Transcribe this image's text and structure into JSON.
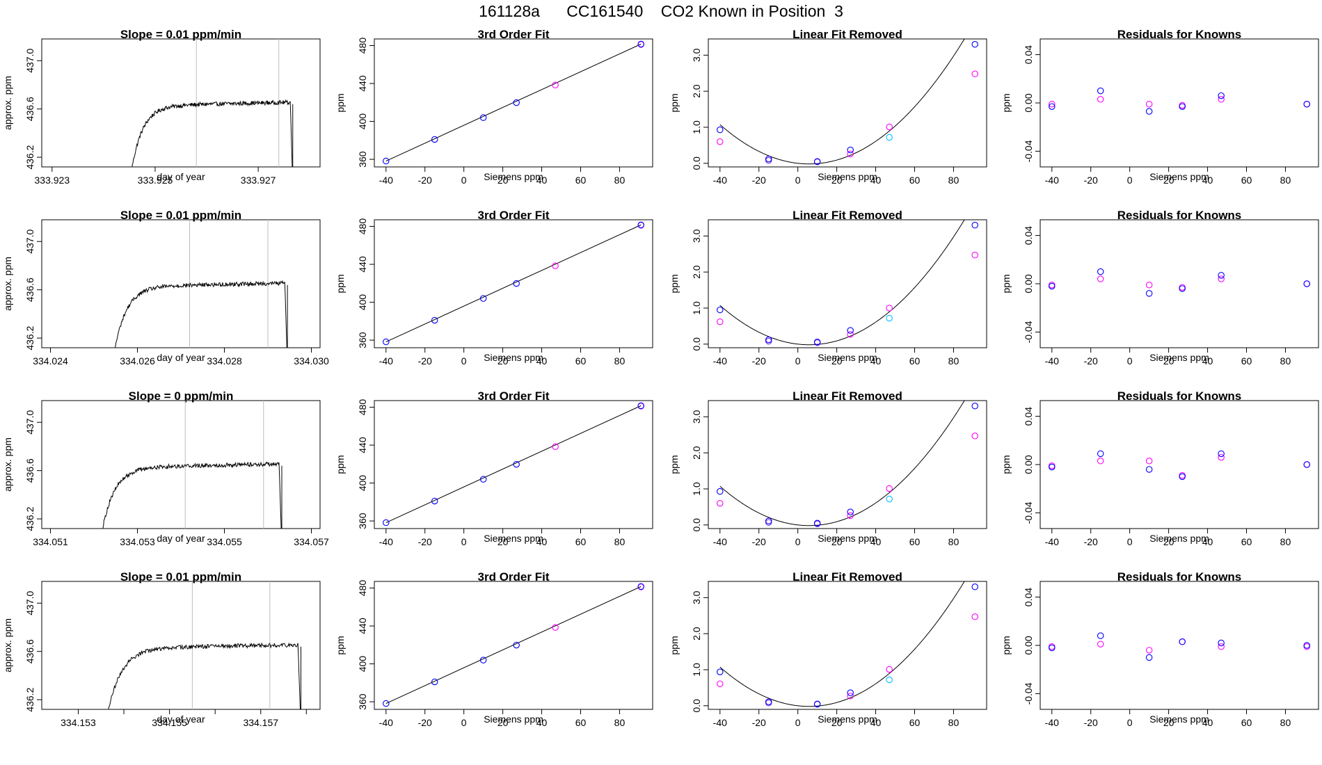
{
  "figure": {
    "title": "161128a      CC161540    CO2 Known in Position  3"
  },
  "colors": {
    "trace": "#000000",
    "gray_line": "#bebebe",
    "blue": "#0000ff",
    "magenta": "#ff00ff",
    "cyan": "#00bfff",
    "purple": "#7a2be0"
  },
  "chart_data": [
    {
      "type": "line",
      "row": 0,
      "panel": "time",
      "title": "Slope =  0.01  ppm/min",
      "xlabel": "day of year",
      "ylabel": "approx. ppm",
      "xlim": [
        333.9228,
        333.9282
      ],
      "ylim": [
        436.12,
        437.18
      ],
      "xticks": [
        333.923,
        333.925,
        333.927
      ],
      "xtick_labels": [
        "333.923",
        "333.925",
        "333.927"
      ],
      "yticks": [
        436.2,
        436.6,
        437.0
      ],
      "ytick_labels": [
        "436.2",
        "436.6",
        "437.0"
      ],
      "vlines": [
        333.9258,
        333.9274
      ],
      "trace_start": 333.92454,
      "trace_end": 333.92767
    },
    {
      "type": "scatter",
      "row": 0,
      "panel": "fit",
      "title": "3rd Order Fit",
      "xlabel": "Siemens ppm",
      "ylabel": "ppm",
      "xlim": [
        -46,
        97
      ],
      "ylim": [
        352,
        487
      ],
      "xticks": [
        -40,
        -20,
        0,
        20,
        40,
        60,
        80
      ],
      "xtick_labels": [
        "-40",
        "-20",
        "0",
        "20",
        "40",
        "60",
        "80"
      ],
      "yticks": [
        360,
        400,
        440,
        480
      ],
      "ytick_labels": [
        "360",
        "400",
        "440",
        "480"
      ],
      "line": {
        "x": [
          -40,
          91
        ],
        "y": [
          358.2,
          481.6
        ]
      },
      "points_blue": {
        "x": [
          -40,
          -15,
          10,
          27,
          91
        ],
        "y": [
          358.2,
          381.0,
          404.0,
          419.8,
          481.6
        ]
      },
      "points_magenta": {
        "x": [
          47,
          91
        ],
        "y": [
          438.4,
          481.2
        ]
      }
    },
    {
      "type": "scatter",
      "row": 0,
      "panel": "linear_removed",
      "title": "Linear Fit Removed",
      "xlabel": "Siemens ppm",
      "ylabel": "ppm",
      "xlim": [
        -46,
        97
      ],
      "ylim": [
        -0.1,
        3.45
      ],
      "xticks": [
        -40,
        -20,
        0,
        20,
        40,
        60,
        80
      ],
      "xtick_labels": [
        "-40",
        "-20",
        "0",
        "20",
        "40",
        "60",
        "80"
      ],
      "yticks": [
        0.0,
        1.0,
        2.0,
        3.0
      ],
      "ytick_labels": [
        "0.0",
        "1.0",
        "2.0",
        "3.0"
      ],
      "curve": {
        "a": -0.0061,
        "b": 0.000526,
        "c": 1.9e-07
      },
      "points_blue": {
        "x": [
          -40,
          -15,
          10,
          27,
          91
        ],
        "y": [
          0.93,
          0.12,
          0.05,
          0.37,
          3.3
        ]
      },
      "points_purple": {
        "x": [
          -15,
          10
        ],
        "y": [
          0.08,
          0.04
        ]
      },
      "points_magenta": {
        "x": [
          -40,
          27,
          47,
          91
        ],
        "y": [
          0.6,
          0.26,
          1.01,
          2.48
        ]
      },
      "points_cyan": {
        "x": [
          47
        ],
        "y": [
          0.72
        ]
      }
    },
    {
      "type": "scatter",
      "row": 0,
      "panel": "residuals",
      "title": "Residuals for Knowns",
      "xlabel": "Siemens ppm",
      "ylabel": "ppm",
      "xlim": [
        -46,
        97
      ],
      "ylim": [
        -0.053,
        0.053
      ],
      "xticks": [
        -40,
        -20,
        0,
        20,
        40,
        60,
        80
      ],
      "xtick_labels": [
        "-40",
        "-20",
        "0",
        "20",
        "40",
        "60",
        "80"
      ],
      "yticks": [
        -0.04,
        0.0,
        0.04
      ],
      "ytick_labels": [
        "-0.04",
        "0.00",
        "0.04"
      ],
      "points_blue": {
        "x": [
          -40,
          -15,
          10,
          27,
          47,
          91
        ],
        "y": [
          -0.003,
          0.01,
          -0.007,
          -0.003,
          0.006,
          -0.001
        ]
      },
      "points_magenta": {
        "x": [
          -40,
          -15,
          10,
          27,
          47,
          91
        ],
        "y": [
          -0.001,
          0.003,
          -0.001,
          -0.002,
          0.003,
          -0.001
        ]
      }
    },
    {
      "type": "line",
      "row": 1,
      "panel": "time",
      "title": "Slope =  0.01  ppm/min",
      "xlabel": "day of year",
      "ylabel": "approx. ppm",
      "xlim": [
        334.0238,
        334.0302
      ],
      "ylim": [
        436.12,
        437.18
      ],
      "xticks": [
        334.024,
        334.026,
        334.028,
        334.03
      ],
      "xtick_labels": [
        "334.024",
        "334.026",
        "334.028",
        "334.030"
      ],
      "yticks": [
        436.2,
        436.6,
        437.0
      ],
      "ytick_labels": [
        "436.2",
        "436.6",
        "437.0"
      ],
      "vlines": [
        334.0272,
        334.029
      ],
      "trace_start": 334.02547,
      "trace_end": 334.02945
    },
    {
      "type": "scatter",
      "row": 1,
      "panel": "fit",
      "title": "3rd Order Fit",
      "xlabel": "Siemens ppm",
      "ylabel": "ppm",
      "xlim": [
        -46,
        97
      ],
      "ylim": [
        352,
        487
      ],
      "xticks": [
        -40,
        -20,
        0,
        20,
        40,
        60,
        80
      ],
      "xtick_labels": [
        "-40",
        "-20",
        "0",
        "20",
        "40",
        "60",
        "80"
      ],
      "yticks": [
        360,
        400,
        440,
        480
      ],
      "ytick_labels": [
        "360",
        "400",
        "440",
        "480"
      ],
      "line": {
        "x": [
          -40,
          91
        ],
        "y": [
          358.2,
          481.6
        ]
      },
      "points_blue": {
        "x": [
          -40,
          -15,
          10,
          27,
          91
        ],
        "y": [
          358.2,
          381.0,
          404.0,
          419.8,
          481.6
        ]
      },
      "points_magenta": {
        "x": [
          47,
          91
        ],
        "y": [
          438.4,
          481.2
        ]
      }
    },
    {
      "type": "scatter",
      "row": 1,
      "panel": "linear_removed",
      "title": "Linear Fit Removed",
      "xlabel": "Siemens ppm",
      "ylabel": "ppm",
      "xlim": [
        -46,
        97
      ],
      "ylim": [
        -0.1,
        3.45
      ],
      "xticks": [
        -40,
        -20,
        0,
        20,
        40,
        60,
        80
      ],
      "xtick_labels": [
        "-40",
        "-20",
        "0",
        "20",
        "40",
        "60",
        "80"
      ],
      "yticks": [
        0.0,
        1.0,
        2.0,
        3.0
      ],
      "ytick_labels": [
        "0.0",
        "1.0",
        "2.0",
        "3.0"
      ],
      "curve": {
        "a": -0.0061,
        "b": 0.000526,
        "c": 1.9e-07
      },
      "points_blue": {
        "x": [
          -40,
          -15,
          10,
          27,
          91
        ],
        "y": [
          0.95,
          0.12,
          0.06,
          0.38,
          3.3
        ]
      },
      "points_purple": {
        "x": [
          -15,
          10
        ],
        "y": [
          0.08,
          0.04
        ]
      },
      "points_magenta": {
        "x": [
          -40,
          27,
          47,
          91
        ],
        "y": [
          0.62,
          0.27,
          1.0,
          2.47
        ]
      },
      "points_cyan": {
        "x": [
          47
        ],
        "y": [
          0.72
        ]
      }
    },
    {
      "type": "scatter",
      "row": 1,
      "panel": "residuals",
      "title": "Residuals for Knowns",
      "xlabel": "Siemens ppm",
      "ylabel": "ppm",
      "xlim": [
        -46,
        97
      ],
      "ylim": [
        -0.053,
        0.053
      ],
      "xticks": [
        -40,
        -20,
        0,
        20,
        40,
        60,
        80
      ],
      "xtick_labels": [
        "-40",
        "-20",
        "0",
        "20",
        "40",
        "60",
        "80"
      ],
      "yticks": [
        -0.04,
        0.0,
        0.04
      ],
      "ytick_labels": [
        "-0.04",
        "0.00",
        "0.04"
      ],
      "points_blue": {
        "x": [
          -40,
          -15,
          10,
          27,
          47,
          91
        ],
        "y": [
          -0.002,
          0.01,
          -0.008,
          -0.004,
          0.007,
          0.0
        ]
      },
      "points_magenta": {
        "x": [
          -40,
          -15,
          10,
          27,
          47,
          91
        ],
        "y": [
          -0.001,
          0.004,
          -0.001,
          -0.003,
          0.004,
          0.0
        ]
      }
    },
    {
      "type": "line",
      "row": 2,
      "panel": "time",
      "title": "Slope =  0  ppm/min",
      "xlabel": "day of year",
      "ylabel": "approx. ppm",
      "xlim": [
        334.0508,
        334.0572
      ],
      "ylim": [
        436.12,
        437.18
      ],
      "xticks": [
        334.051,
        334.053,
        334.055,
        334.057
      ],
      "xtick_labels": [
        "334.051",
        "334.053",
        "334.055",
        "334.057"
      ],
      "yticks": [
        436.2,
        436.6,
        437.0
      ],
      "ytick_labels": [
        "436.2",
        "436.6",
        "437.0"
      ],
      "vlines": [
        334.0541,
        334.0559
      ],
      "trace_start": 334.05218,
      "trace_end": 334.05632
    },
    {
      "type": "scatter",
      "row": 2,
      "panel": "fit",
      "title": "3rd Order Fit",
      "xlabel": "Siemens ppm",
      "ylabel": "ppm",
      "xlim": [
        -46,
        97
      ],
      "ylim": [
        352,
        487
      ],
      "xticks": [
        -40,
        -20,
        0,
        20,
        40,
        60,
        80
      ],
      "xtick_labels": [
        "-40",
        "-20",
        "0",
        "20",
        "40",
        "60",
        "80"
      ],
      "yticks": [
        360,
        400,
        440,
        480
      ],
      "ytick_labels": [
        "360",
        "400",
        "440",
        "480"
      ],
      "line": {
        "x": [
          -40,
          91
        ],
        "y": [
          358.2,
          481.6
        ]
      },
      "points_blue": {
        "x": [
          -40,
          -15,
          10,
          27,
          91
        ],
        "y": [
          358.2,
          381.0,
          404.0,
          419.8,
          481.6
        ]
      },
      "points_magenta": {
        "x": [
          47,
          91
        ],
        "y": [
          438.4,
          481.2
        ]
      }
    },
    {
      "type": "scatter",
      "row": 2,
      "panel": "linear_removed",
      "title": "Linear Fit Removed",
      "xlabel": "Siemens ppm",
      "ylabel": "ppm",
      "xlim": [
        -46,
        97
      ],
      "ylim": [
        -0.1,
        3.45
      ],
      "xticks": [
        -40,
        -20,
        0,
        20,
        40,
        60,
        80
      ],
      "xtick_labels": [
        "-40",
        "-20",
        "0",
        "20",
        "40",
        "60",
        "80"
      ],
      "yticks": [
        0.0,
        1.0,
        2.0,
        3.0
      ],
      "ytick_labels": [
        "0.0",
        "1.0",
        "2.0",
        "3.0"
      ],
      "curve": {
        "a": -0.0061,
        "b": 0.000526,
        "c": 1.9e-07
      },
      "points_blue": {
        "x": [
          -40,
          -15,
          10,
          27,
          91
        ],
        "y": [
          0.93,
          0.11,
          0.05,
          0.36,
          3.3
        ]
      },
      "points_purple": {
        "x": [
          -15,
          10
        ],
        "y": [
          0.07,
          0.03
        ]
      },
      "points_magenta": {
        "x": [
          -40,
          27,
          47,
          91
        ],
        "y": [
          0.6,
          0.26,
          1.01,
          2.47
        ]
      },
      "points_cyan": {
        "x": [
          47
        ],
        "y": [
          0.72
        ]
      }
    },
    {
      "type": "scatter",
      "row": 2,
      "panel": "residuals",
      "title": "Residuals for Knowns",
      "xlabel": "Siemens ppm",
      "ylabel": "ppm",
      "xlim": [
        -46,
        97
      ],
      "ylim": [
        -0.053,
        0.053
      ],
      "xticks": [
        -40,
        -20,
        0,
        20,
        40,
        60,
        80
      ],
      "xtick_labels": [
        "-40",
        "-20",
        "0",
        "20",
        "40",
        "60",
        "80"
      ],
      "yticks": [
        -0.04,
        0.0,
        0.04
      ],
      "ytick_labels": [
        "-0.04",
        "0.00",
        "0.04"
      ],
      "points_blue": {
        "x": [
          -40,
          -15,
          10,
          27,
          47,
          91
        ],
        "y": [
          -0.002,
          0.009,
          -0.004,
          -0.01,
          0.009,
          0.0
        ]
      },
      "points_magenta": {
        "x": [
          -40,
          -15,
          10,
          27,
          47,
          91
        ],
        "y": [
          -0.001,
          0.003,
          0.003,
          -0.009,
          0.006,
          0.0
        ]
      }
    },
    {
      "type": "line",
      "row": 3,
      "panel": "time",
      "title": "Slope =  0.01  ppm/min",
      "xlabel": "day of year",
      "ylabel": "approx. ppm",
      "xlim": [
        334.1522,
        334.1583
      ],
      "ylim": [
        436.12,
        437.18
      ],
      "xticks": [
        334.153,
        334.155,
        334.157
      ],
      "xtick_labels": [
        "334.153",
        "334.155",
        "334.157"
      ],
      "yticks": [
        436.2,
        436.6,
        437.0
      ],
      "ytick_labels": [
        "436.2",
        "436.6",
        "437.0"
      ],
      "minor_xticks": [
        334.154,
        334.156,
        334.158
      ],
      "vlines": [
        334.1555,
        334.1572
      ],
      "trace_start": 334.15365,
      "trace_end": 334.15788
    },
    {
      "type": "scatter",
      "row": 3,
      "panel": "fit",
      "title": "3rd Order Fit",
      "xlabel": "Siemens ppm",
      "ylabel": "ppm",
      "xlim": [
        -46,
        97
      ],
      "ylim": [
        352,
        487
      ],
      "xticks": [
        -40,
        -20,
        0,
        20,
        40,
        60,
        80
      ],
      "xtick_labels": [
        "-40",
        "-20",
        "0",
        "20",
        "40",
        "60",
        "80"
      ],
      "yticks": [
        360,
        400,
        440,
        480
      ],
      "ytick_labels": [
        "360",
        "400",
        "440",
        "480"
      ],
      "line": {
        "x": [
          -40,
          91
        ],
        "y": [
          358.2,
          481.6
        ]
      },
      "points_blue": {
        "x": [
          -40,
          -15,
          10,
          27,
          91
        ],
        "y": [
          358.2,
          381.0,
          404.0,
          419.8,
          481.6
        ]
      },
      "points_magenta": {
        "x": [
          47,
          91
        ],
        "y": [
          438.4,
          481.2
        ]
      }
    },
    {
      "type": "scatter",
      "row": 3,
      "panel": "linear_removed",
      "title": "Linear Fit Removed",
      "xlabel": "Siemens ppm",
      "ylabel": "ppm",
      "xlim": [
        -46,
        97
      ],
      "ylim": [
        -0.1,
        3.45
      ],
      "xticks": [
        -40,
        -20,
        0,
        20,
        40,
        60,
        80
      ],
      "xtick_labels": [
        "-40",
        "-20",
        "0",
        "20",
        "40",
        "60",
        "80"
      ],
      "yticks": [
        0.0,
        1.0,
        2.0,
        3.0
      ],
      "ytick_labels": [
        "0.0",
        "1.0",
        "2.0",
        "3.0"
      ],
      "curve": {
        "a": -0.0061,
        "b": 0.000526,
        "c": 1.9e-07
      },
      "points_blue": {
        "x": [
          -40,
          -15,
          10,
          27,
          91
        ],
        "y": [
          0.94,
          0.11,
          0.05,
          0.36,
          3.3
        ]
      },
      "points_purple": {
        "x": [
          -15,
          10
        ],
        "y": [
          0.08,
          0.04
        ]
      },
      "points_magenta": {
        "x": [
          -40,
          27,
          47,
          91
        ],
        "y": [
          0.61,
          0.27,
          1.01,
          2.47
        ]
      },
      "points_cyan": {
        "x": [
          47
        ],
        "y": [
          0.72
        ]
      }
    },
    {
      "type": "scatter",
      "row": 3,
      "panel": "residuals",
      "title": "Residuals for Knowns",
      "xlabel": "Siemens ppm",
      "ylabel": "ppm",
      "xlim": [
        -46,
        97
      ],
      "ylim": [
        -0.053,
        0.053
      ],
      "xticks": [
        -40,
        -20,
        0,
        20,
        40,
        60,
        80
      ],
      "xtick_labels": [
        "-40",
        "-20",
        "0",
        "20",
        "40",
        "60",
        "80"
      ],
      "yticks": [
        -0.04,
        0.0,
        0.04
      ],
      "ytick_labels": [
        "-0.04",
        "0.00",
        "0.04"
      ],
      "points_blue": {
        "x": [
          -40,
          -15,
          10,
          27,
          47,
          91
        ],
        "y": [
          -0.002,
          0.008,
          -0.01,
          0.003,
          0.002,
          0.0
        ]
      },
      "points_magenta": {
        "x": [
          -40,
          -15,
          10,
          27,
          47,
          91
        ],
        "y": [
          -0.001,
          0.001,
          -0.004,
          0.003,
          -0.001,
          -0.001
        ]
      }
    }
  ]
}
